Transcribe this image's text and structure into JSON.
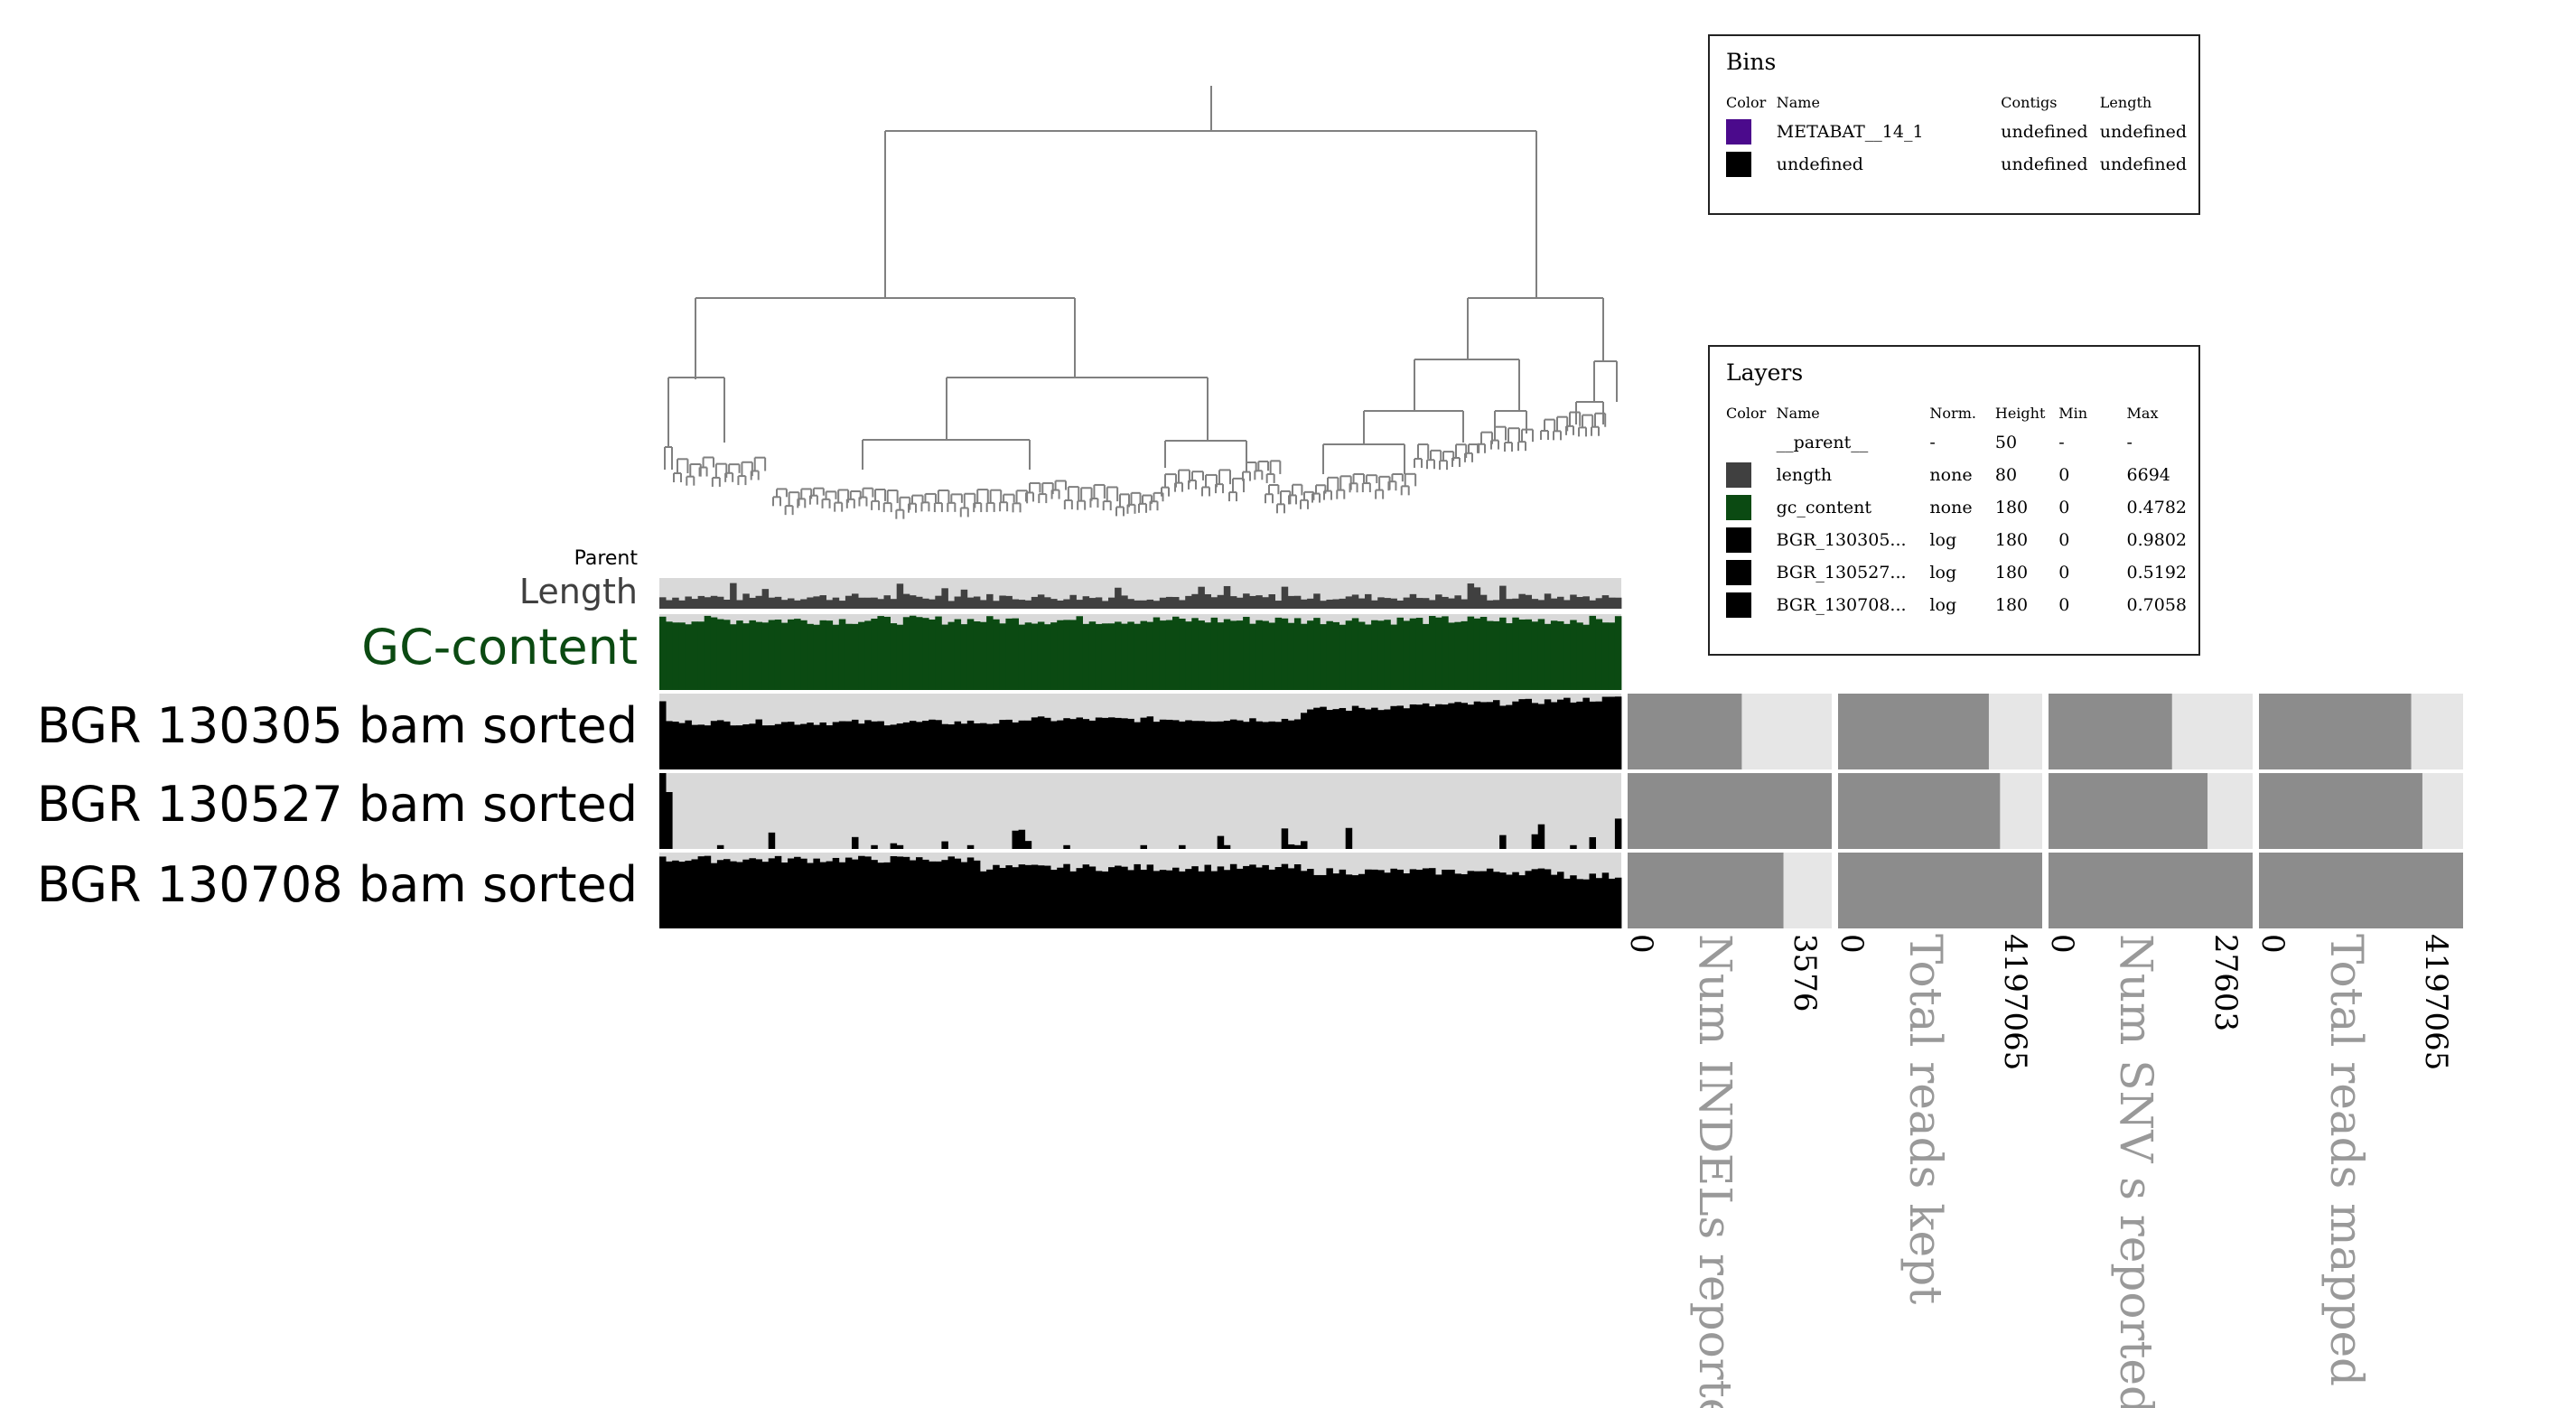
{
  "layer_labels": {
    "parent": "Parent",
    "length": "Length",
    "gc_content": "GC-content",
    "s1": "BGR 130305 bam sorted",
    "s2": "BGR 130527 bam sorted",
    "s3": "BGR 130708 bam sorted"
  },
  "bins_legend": {
    "title": "Bins",
    "headers": {
      "color": "Color",
      "name": "Name",
      "contigs": "Contigs",
      "length": "Length"
    },
    "rows": [
      {
        "color": "#4b0a8c",
        "name": "METABAT__14_1",
        "contigs": "undefined",
        "length": "undefined"
      },
      {
        "color": "#000000",
        "name": "undefined",
        "contigs": "undefined",
        "length": "undefined"
      }
    ]
  },
  "layers_legend": {
    "title": "Layers",
    "headers": {
      "color": "Color",
      "name": "Name",
      "norm": "Norm.",
      "height": "Height",
      "min": "Min",
      "max": "Max"
    },
    "rows": [
      {
        "color": "",
        "name": "__parent__",
        "norm": "-",
        "height": "50",
        "min": "-",
        "max": "-"
      },
      {
        "color": "#404040",
        "name": "length",
        "norm": "none",
        "height": "80",
        "min": "0",
        "max": "6694"
      },
      {
        "color": "#0b4a12",
        "name": "gc_content",
        "norm": "none",
        "height": "180",
        "min": "0",
        "max": "0.4782"
      },
      {
        "color": "#000000",
        "name": "BGR_130305...",
        "norm": "log",
        "height": "180",
        "min": "0",
        "max": "0.9802"
      },
      {
        "color": "#000000",
        "name": "BGR_130527...",
        "norm": "log",
        "height": "180",
        "min": "0",
        "max": "0.5192"
      },
      {
        "color": "#000000",
        "name": "BGR_130708...",
        "norm": "log",
        "height": "180",
        "min": "0",
        "max": "0.7058"
      }
    ]
  },
  "colors": {
    "length": "#404040",
    "gc_content": "#0b4a12",
    "coverage": "#000000",
    "track_bg": "#d9d9d9",
    "tree": "#808080",
    "bar": "#8c8c8c",
    "bar_bg": "#e6e6e6",
    "axis_title": "#999999"
  },
  "chart_data": [
    {
      "type": "bar",
      "title": "Num INDELs reported",
      "categories": [
        "BGR 130305 bam sorted",
        "BGR 130527 bam sorted",
        "BGR 130708 bam sorted"
      ],
      "values": [
        2000,
        3576,
        2730
      ],
      "min_label": "0",
      "max_label": "3576",
      "ylim": [
        0,
        3576
      ]
    },
    {
      "type": "bar",
      "title": "Total reads kept",
      "categories": [
        "BGR 130305 bam sorted",
        "BGR 130527 bam sorted",
        "BGR 130708 bam sorted"
      ],
      "values": [
        3100000,
        3330000,
        4197065
      ],
      "min_label": "0",
      "max_label": "4197065",
      "ylim": [
        0,
        4197065
      ]
    },
    {
      "type": "bar",
      "title": "Num SNV s reported",
      "categories": [
        "BGR 130305 bam sorted",
        "BGR 130527 bam sorted",
        "BGR 130708 bam sorted"
      ],
      "values": [
        16700,
        21500,
        27603
      ],
      "min_label": "0",
      "max_label": "27603",
      "ylim": [
        0,
        27603
      ]
    },
    {
      "type": "bar",
      "title": "Total reads mapped",
      "categories": [
        "BGR 130305 bam sorted",
        "BGR 130527 bam sorted",
        "BGR 130708 bam sorted"
      ],
      "values": [
        3130000,
        3360000,
        4197065
      ],
      "min_label": "0",
      "max_label": "4197065",
      "ylim": [
        0,
        4197065
      ]
    }
  ]
}
